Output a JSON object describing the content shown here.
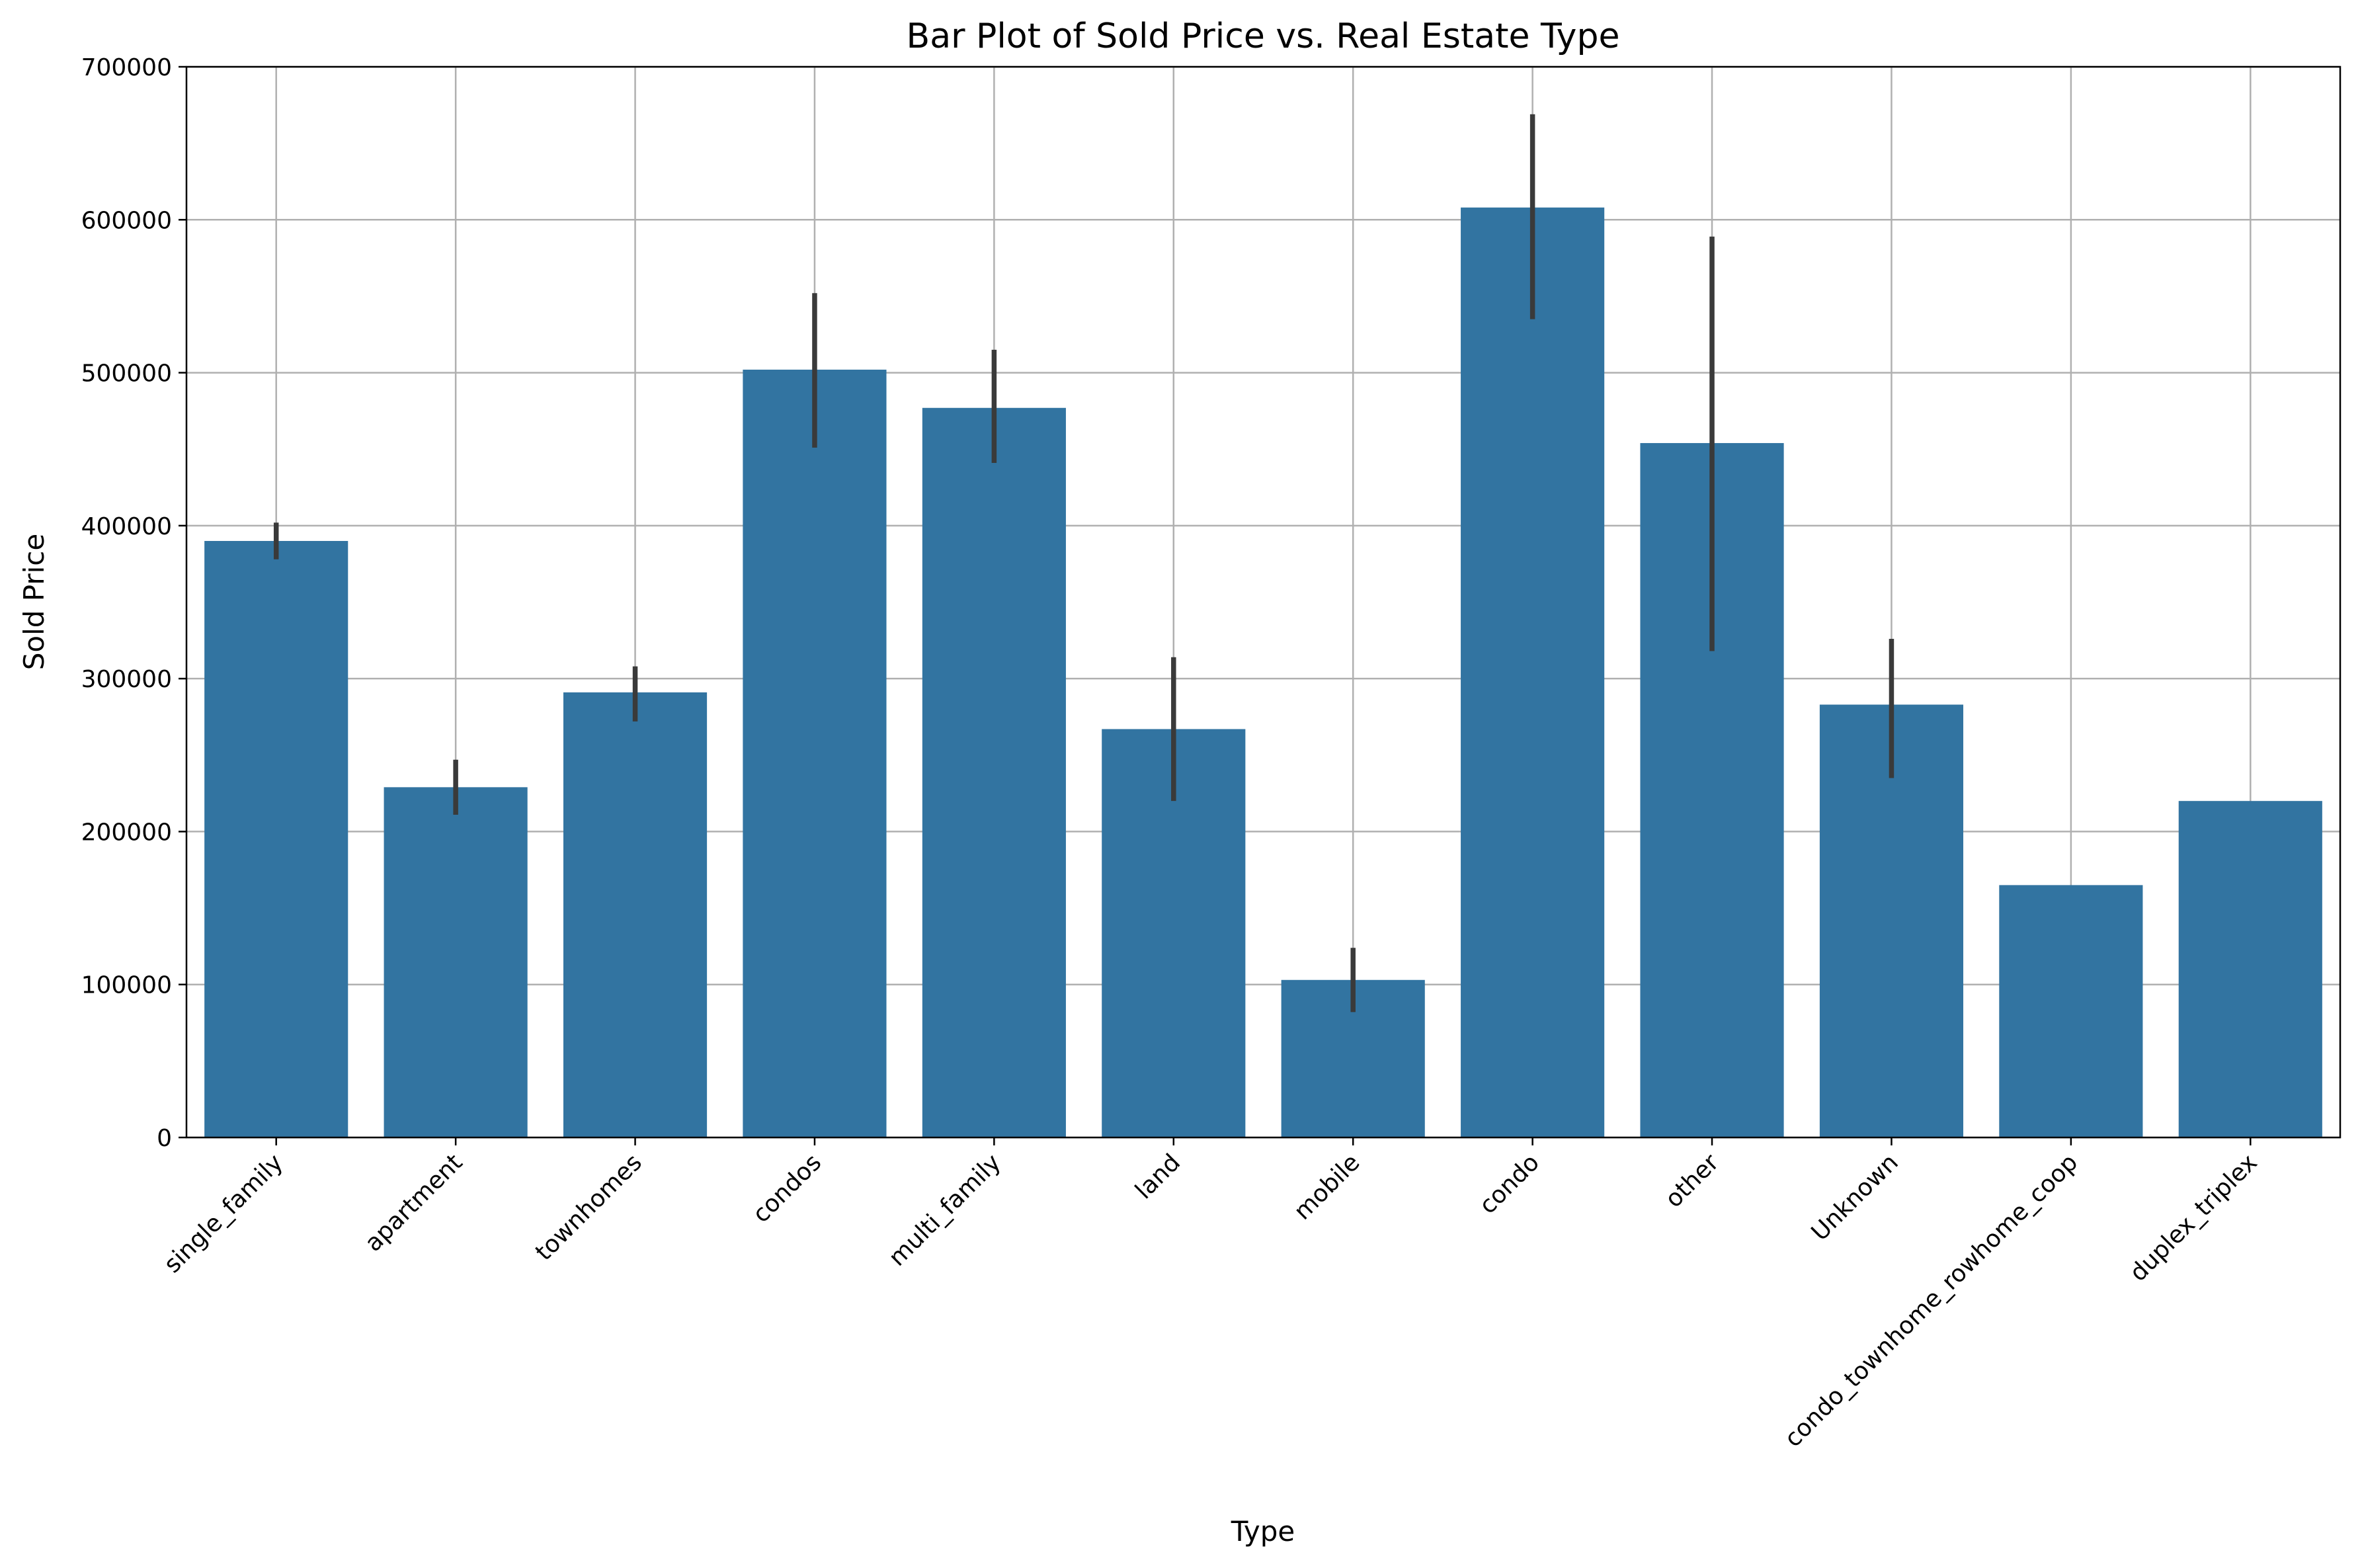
{
  "chart_data": {
    "type": "bar",
    "title": "Bar Plot of Sold Price vs. Real Estate Type",
    "xlabel": "Type",
    "ylabel": "Sold Price",
    "categories": [
      "single_family",
      "apartment",
      "townhomes",
      "condos",
      "multi_family",
      "land",
      "mobile",
      "condo",
      "other",
      "Unknown",
      "condo_townhome_rowhome_coop",
      "duplex_triplex"
    ],
    "values": [
      390000,
      229000,
      291000,
      502000,
      477000,
      267000,
      103000,
      608000,
      454000,
      283000,
      165000,
      220000
    ],
    "error_bars": [
      [
        378000,
        402000
      ],
      [
        211000,
        247000
      ],
      [
        272000,
        308000
      ],
      [
        451000,
        552000
      ],
      [
        441000,
        515000
      ],
      [
        220000,
        314000
      ],
      [
        82000,
        124000
      ],
      [
        535000,
        669000
      ],
      [
        318000,
        589000
      ],
      [
        235000,
        326000
      ],
      null,
      null
    ],
    "ylim": [
      0,
      700000
    ],
    "yticks": [
      0,
      100000,
      200000,
      300000,
      400000,
      500000,
      600000,
      700000
    ],
    "ytick_labels": [
      "0",
      "100000",
      "200000",
      "300000",
      "400000",
      "500000",
      "600000",
      "700000"
    ],
    "grid": true,
    "legend": false,
    "bar_color": "#3274a1",
    "error_color": "#3a3a3a",
    "grid_color": "#b0b0b0"
  }
}
